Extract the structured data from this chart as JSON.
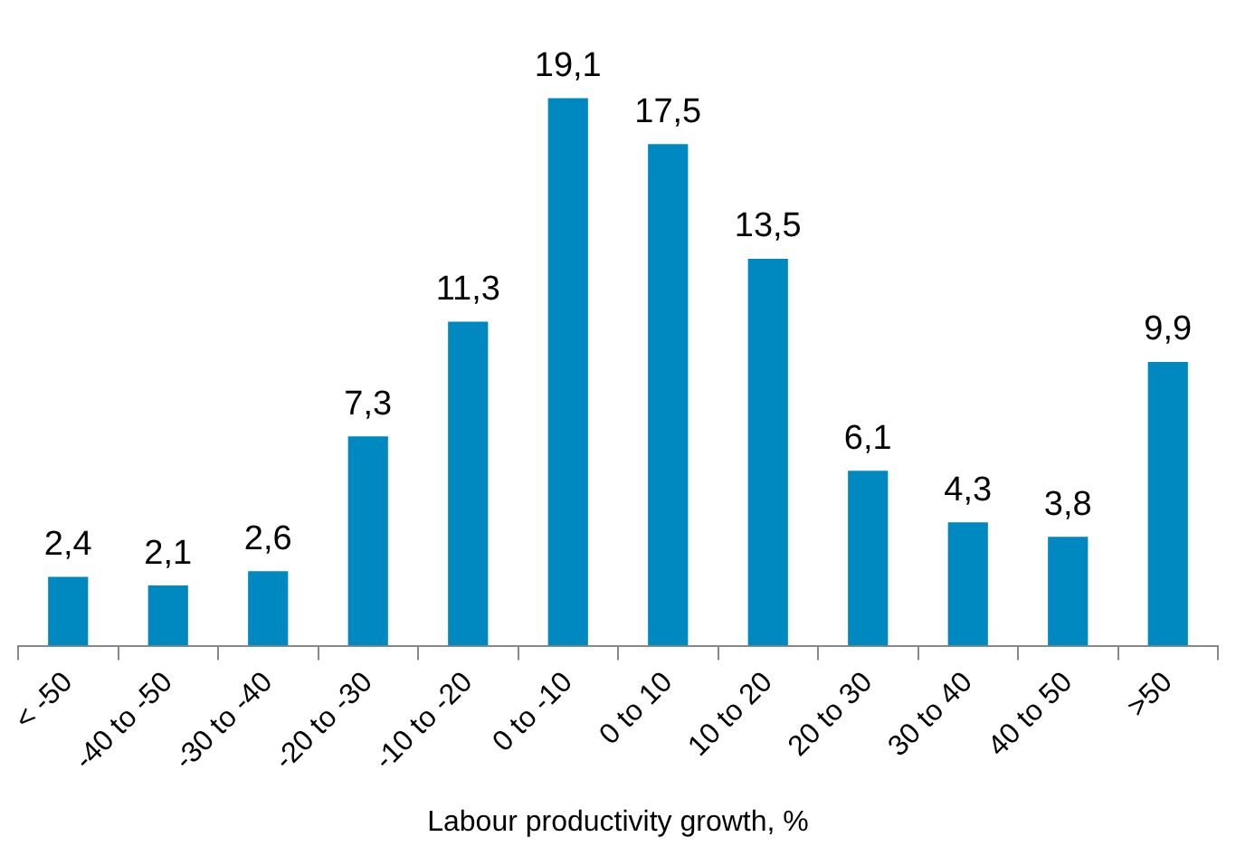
{
  "chart_data": {
    "type": "bar",
    "xlabel": "Labour productivity growth, %",
    "categories": [
      "< -50",
      "-40 to -50",
      "-30 to -40",
      "-20 to -30",
      "-10 to -20",
      "0 to -10",
      "0 to 10",
      "10 to 20",
      "20 to 30",
      "30 to 40",
      "40 to 50",
      ">50"
    ],
    "values": [
      2.4,
      2.1,
      2.6,
      7.3,
      11.3,
      19.1,
      17.5,
      13.5,
      6.1,
      4.3,
      3.8,
      9.9
    ],
    "value_labels": [
      "2,4",
      "2,1",
      "2,6",
      "7,3",
      "11,3",
      "19,1",
      "17,5",
      "13,5",
      "6,1",
      "4,3",
      "3,8",
      "9,9"
    ],
    "color": "#0088c0",
    "grid": false,
    "legend": false,
    "tick_labels": "x"
  }
}
